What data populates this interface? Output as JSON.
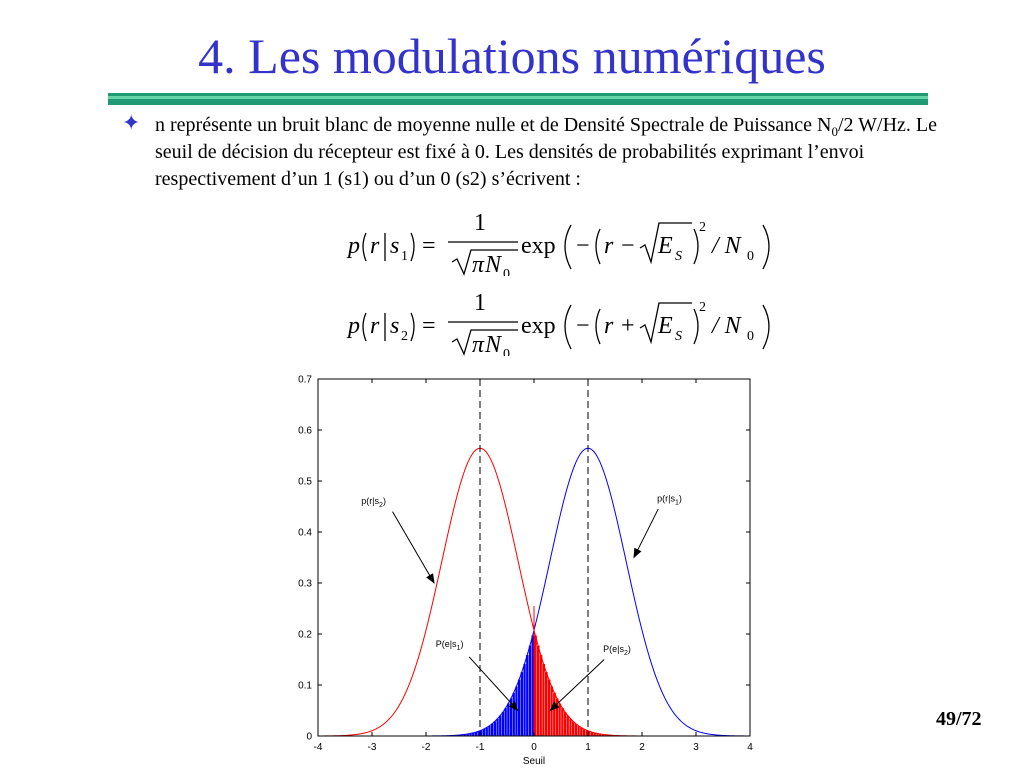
{
  "slide": {
    "title": "4. Les modulations numériques",
    "page_number": "49/72"
  },
  "bullet": {
    "text_1": "n représente un bruit blanc de moyenne nulle et de Densité Spectrale de Puissance N",
    "sub_1": "0",
    "text_2": "/2 W/Hz. Le seuil de décision du récepteur est fixé à 0. Les densités de probabilités exprimant l’envoi respectivement d’un 1 (s1) ou d’un 0 (s2) s’écrivent :"
  },
  "formulas": [
    {
      "lhs_var": "p",
      "arg": "r",
      "cond": "s",
      "cond_sub": "1",
      "numerator": "1",
      "den_pi": "π",
      "den_var": "N",
      "den_sub": "0",
      "func": "exp",
      "op": "−",
      "sign": "−",
      "energy": "E",
      "energy_sub": "S",
      "power": "2",
      "div": "/ N",
      "div_sub": "0",
      "eq": "="
    },
    {
      "lhs_var": "p",
      "arg": "r",
      "cond": "s",
      "cond_sub": "2",
      "numerator": "1",
      "den_pi": "π",
      "den_var": "N",
      "den_sub": "0",
      "func": "exp",
      "op": "−",
      "sign": "+",
      "energy": "E",
      "energy_sub": "S",
      "power": "2",
      "div": "/ N",
      "div_sub": "0",
      "eq": "="
    }
  ],
  "chart_data": {
    "type": "line",
    "xlabel": "Seuil",
    "ylabel": "",
    "xlim": [
      -4,
      4
    ],
    "ylim": [
      0,
      0.7
    ],
    "x_ticks": [
      -4,
      -3,
      -2,
      -1,
      0,
      1,
      2,
      3,
      4
    ],
    "y_ticks": [
      0,
      0.1,
      0.2,
      0.3,
      0.4,
      0.5,
      0.6,
      0.7
    ],
    "y_tick_labels": [
      "0",
      "0.1",
      "0.2",
      "0.3",
      "0.4",
      "0.5",
      "0.6",
      "0.7"
    ],
    "grid": false,
    "series": [
      {
        "name": "p(r|s1)",
        "mean": 1,
        "N0": 1,
        "peak": 0.5642,
        "color": "#0000ff"
      },
      {
        "name": "p(r|s2)",
        "mean": -1,
        "N0": 1,
        "peak": 0.5642,
        "color": "#ff0000"
      }
    ],
    "threshold": 0,
    "dashed_lines_x": [
      -1,
      1
    ],
    "shaded_regions": [
      {
        "label": "P(e|s1)",
        "series": "p(r|s1)",
        "from": -4,
        "to": 0,
        "color": "#0000ff"
      },
      {
        "label": "P(e|s2)",
        "series": "p(r|s2)",
        "from": 0,
        "to": 4,
        "color": "#ff0000"
      }
    ],
    "annotations": [
      {
        "text": "p(r|s",
        "sub": "2",
        "close": ")",
        "points_to": [
          -1.85,
          0.3
        ]
      },
      {
        "text": "p(r|s",
        "sub": "1",
        "close": ")",
        "points_to": [
          1.85,
          0.35
        ]
      },
      {
        "text": "P(e|s",
        "sub": "1",
        "close": ")",
        "points_to": [
          -0.3,
          0.05
        ]
      },
      {
        "text": "P(e|s",
        "sub": "2",
        "close": ")",
        "points_to": [
          0.3,
          0.05
        ]
      }
    ]
  }
}
